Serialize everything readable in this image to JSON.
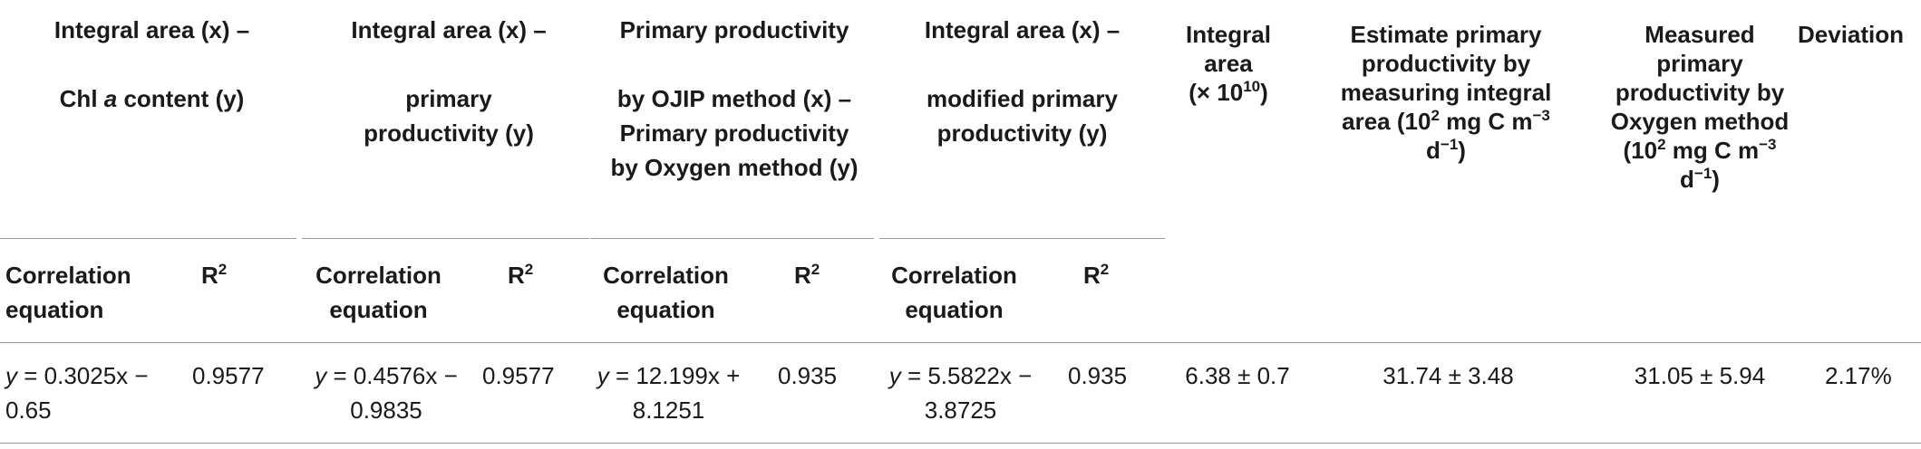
{
  "groups": [
    {
      "lines": [
        "Integral area (x) –",
        "",
        "Chl a content (y)"
      ]
    },
    {
      "lines": [
        "Integral area (x) –",
        "",
        "primary",
        "productivity (y)"
      ]
    },
    {
      "lines": [
        "Primary productivity",
        "",
        "by OJIP method (x) –",
        "Primary productivity",
        "by Oxygen method (y)"
      ]
    },
    {
      "lines": [
        "Integral area (x) –",
        "",
        "modified primary",
        "productivity (y)"
      ]
    }
  ],
  "single_headers": {
    "integral_area": {
      "l1": "Integral",
      "l2": "area",
      "l3_pre": "(× 10",
      "l3_sup": "10",
      "l3_post": ")"
    },
    "estimate": {
      "l1": "Estimate primary",
      "l2": "productivity by",
      "l3": "measuring integral",
      "l4_pre": "area (10",
      "l4_sup1": "2",
      "l4_mid": " mg C m",
      "l4_sup2": "−3",
      "l5_pre": "d",
      "l5_sup": "−1",
      "l5_post": ")"
    },
    "measured": {
      "l1": "Measured",
      "l2": "primary",
      "l3": "productivity by",
      "l4": "Oxygen method",
      "l5_pre": "(10",
      "l5_sup1": "2",
      "l5_mid": " mg C m",
      "l5_sup2": "−3",
      "l6_pre": "d",
      "l6_sup": "−1",
      "l6_post": ")"
    },
    "deviation": "Deviation"
  },
  "subheaders": {
    "eq_l1": "Correlation",
    "eq_l2": "equation",
    "r2_base": "R",
    "r2_sup": "2"
  },
  "row": {
    "eq1": {
      "y": "y",
      "l1": " = 0.3025x −",
      "l2": "0.65"
    },
    "r2_1": "0.9577",
    "eq2": {
      "y": "y",
      "l1": " = 0.4576x −",
      "l2": "0.9835"
    },
    "r2_2": "0.9577",
    "eq3": {
      "y": "y",
      "l1": " = 12.199x +",
      "l2": "8.1251"
    },
    "r2_3": "0.935",
    "eq4": {
      "y": "y",
      "l1": " = 5.5822x −",
      "l2": "3.8725"
    },
    "r2_4": "0.935",
    "integral_area": "6.38 ± 0.7",
    "estimate": "31.74 ± 3.48",
    "measured": "31.05 ± 5.94",
    "deviation": "2.17%"
  }
}
